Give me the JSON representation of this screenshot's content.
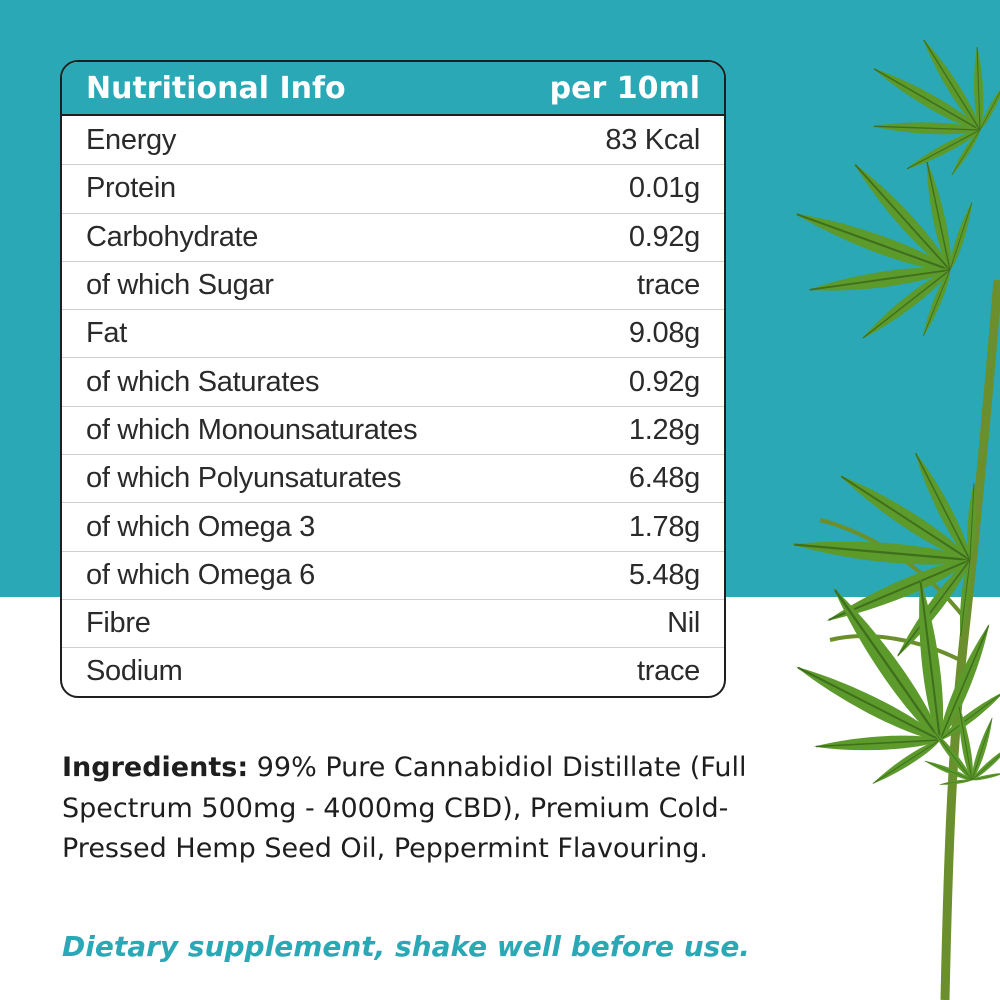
{
  "colors": {
    "teal": "#2ba8b6",
    "text": "#1e1e1e",
    "border": "#1f1f1f",
    "leaf": "#5a8f2a"
  },
  "table": {
    "title": "Nutritional Info",
    "per": "per 10ml",
    "rows": [
      {
        "label": "Energy",
        "value": "83 Kcal"
      },
      {
        "label": "Protein",
        "value": "0.01g"
      },
      {
        "label": "Carbohydrate",
        "value": "0.92g"
      },
      {
        "label": "of which Sugar",
        "value": "trace"
      },
      {
        "label": "Fat",
        "value": "9.08g"
      },
      {
        "label": "of which Saturates",
        "value": "0.92g"
      },
      {
        "label": "of which Monounsaturates",
        "value": "1.28g"
      },
      {
        "label": "of which Polyunsaturates",
        "value": "6.48g"
      },
      {
        "label": "of which Omega 3",
        "value": "1.78g"
      },
      {
        "label": "of which Omega 6",
        "value": "5.48g"
      },
      {
        "label": "Fibre",
        "value": "Nil"
      },
      {
        "label": "Sodium",
        "value": "trace"
      }
    ]
  },
  "ingredients": {
    "heading": "Ingredients:",
    "text": "99% Pure Cannabidiol Distillate (Full Spectrum 500mg - 4000mg CBD), Premium Cold-Pressed Hemp Seed Oil, Peppermint Flavouring."
  },
  "note": "Dietary supplement, shake well before use.",
  "decoration": {
    "icon": "hemp-leaf-icon"
  }
}
